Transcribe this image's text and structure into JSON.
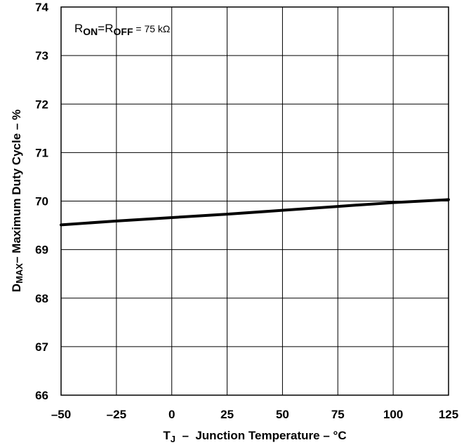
{
  "chart_data": {
    "type": "line",
    "title": "",
    "xlabel": {
      "main": "T",
      "sub": "J",
      "rest": "  –  Junction Temperature – °C"
    },
    "ylabel": {
      "main": "D",
      "sub": "MAX",
      "rest": "– Maximum Duty Cycle – %"
    },
    "annotation": {
      "r1": "R",
      "r1_sub": "ON",
      "eq1": "=",
      "r2": "R",
      "r2_sub": "OFF",
      "rest": " = 75 kΩ"
    },
    "xlim": [
      -50,
      125
    ],
    "ylim": [
      66,
      74
    ],
    "x_ticks": [
      -50,
      -25,
      0,
      25,
      50,
      75,
      100,
      125
    ],
    "x_tick_labels": [
      "–50",
      "–25",
      "0",
      "25",
      "50",
      "75",
      "100",
      "125"
    ],
    "y_ticks": [
      66,
      67,
      68,
      69,
      70,
      71,
      72,
      73,
      74
    ],
    "y_tick_labels": [
      "66",
      "67",
      "68",
      "69",
      "70",
      "71",
      "72",
      "73",
      "74"
    ],
    "grid": true,
    "series": [
      {
        "x": [
          -50,
          -25,
          0,
          25,
          50,
          75,
          100,
          125
        ],
        "y": [
          69.51,
          69.59,
          69.66,
          69.73,
          69.81,
          69.89,
          69.97,
          70.03
        ]
      }
    ]
  }
}
